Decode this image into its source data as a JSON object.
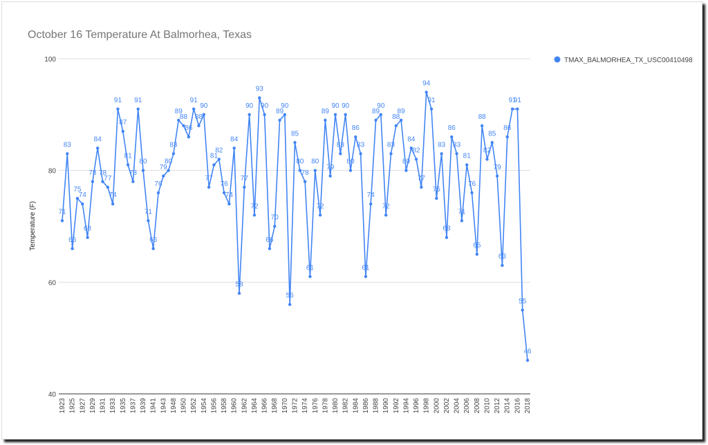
{
  "chart_data": {
    "type": "line",
    "title": "October 16 Temperature At Balmorhea, Texas",
    "ylabel": "Temperature (F)",
    "categories": [
      "1923",
      null,
      "1925",
      null,
      "1927",
      null,
      "1929",
      null,
      "1931",
      null,
      "1933",
      null,
      "1935",
      null,
      "1937",
      null,
      "1939",
      null,
      "1941",
      null,
      "1943",
      null,
      "1948",
      null,
      "1950",
      null,
      "1952",
      null,
      "1954",
      null,
      "1956",
      null,
      "1958",
      null,
      "1960",
      null,
      "1962",
      null,
      "1964",
      null,
      "1966",
      null,
      "1968",
      null,
      "1970",
      null,
      "1972",
      null,
      "1974",
      null,
      "1976",
      null,
      "1978",
      null,
      "1980",
      null,
      "1982",
      null,
      "1984",
      null,
      "1986",
      null,
      "1988",
      null,
      "1990",
      null,
      "1992",
      null,
      "1994",
      null,
      "1996",
      null,
      "1998",
      null,
      "2000",
      null,
      "2002",
      null,
      "2004",
      null,
      "2006",
      null,
      "2008",
      null,
      "2010",
      null,
      "2012",
      null,
      "2014",
      null,
      "2016",
      null,
      "2018"
    ],
    "series": [
      {
        "name": "TMAX_BALMORHEA_TX_USC00410498",
        "color": "#4285f4",
        "values": [
          71,
          83,
          66,
          75,
          74,
          68,
          78,
          84,
          78,
          77,
          74,
          91,
          87,
          81,
          78,
          91,
          80,
          71,
          66,
          76,
          79,
          80,
          83,
          89,
          88,
          86,
          91,
          88,
          90,
          77,
          81,
          82,
          76,
          74,
          84,
          58,
          77,
          90,
          72,
          93,
          90,
          66,
          70,
          89,
          90,
          56,
          85,
          80,
          78,
          61,
          80,
          72,
          89,
          79,
          90,
          83,
          90,
          80,
          86,
          83,
          61,
          74,
          89,
          90,
          72,
          83,
          88,
          89,
          80,
          84,
          82,
          77,
          94,
          91,
          75,
          83,
          68,
          86,
          83,
          71,
          81,
          76,
          65,
          88,
          82,
          85,
          79,
          63,
          86,
          91,
          91,
          55,
          46
        ]
      }
    ],
    "ylim": [
      40,
      100
    ],
    "yticks": [
      40,
      60,
      80,
      100
    ],
    "grid": true,
    "legend": "top-right"
  }
}
